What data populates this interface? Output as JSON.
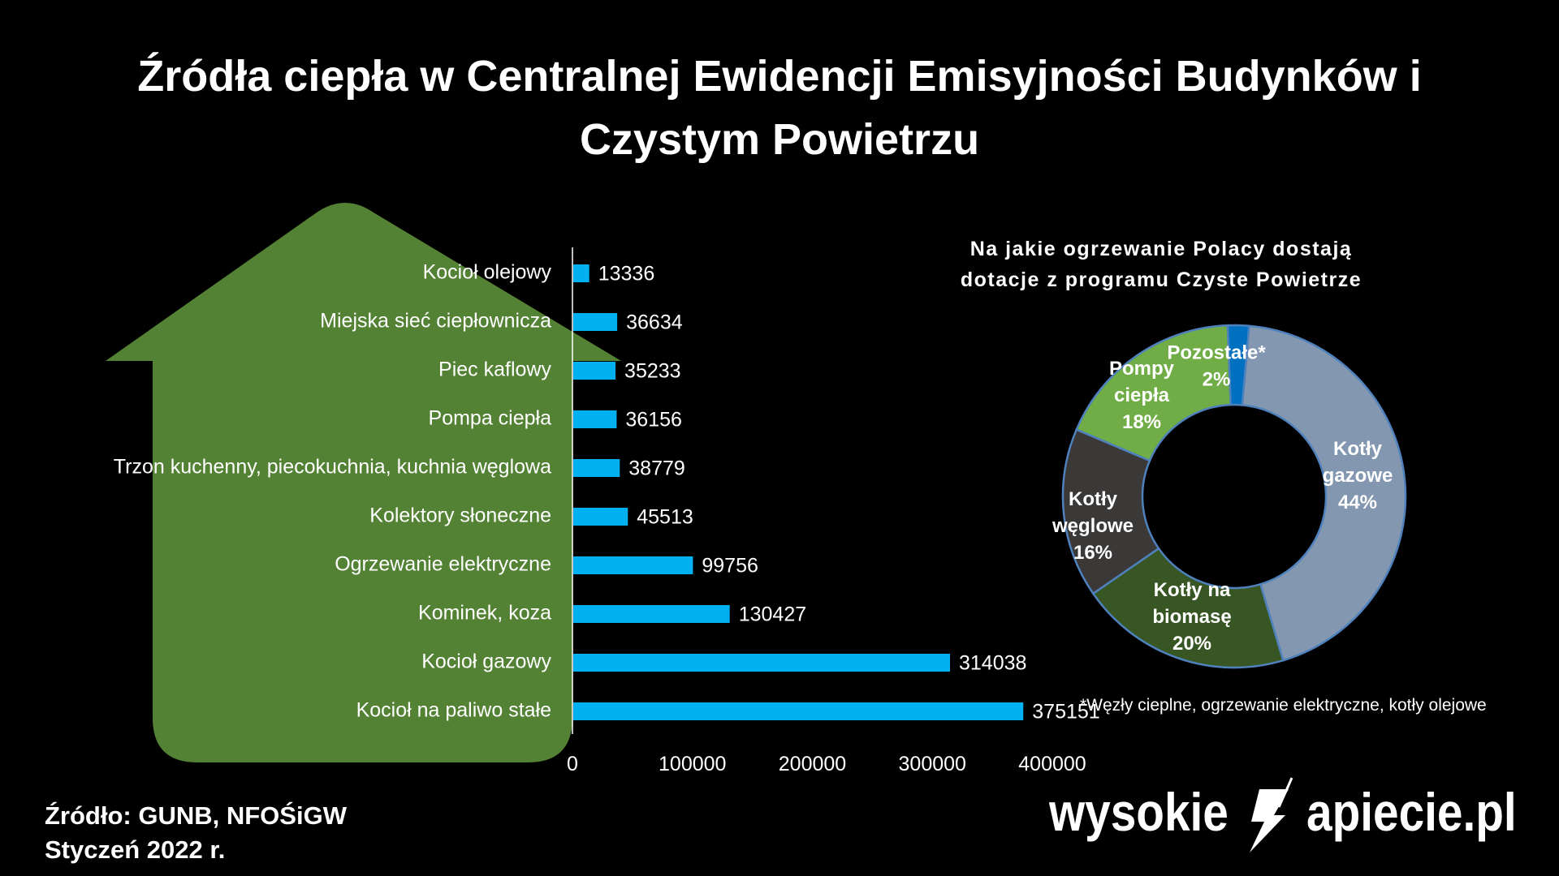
{
  "title": {
    "line1": "Źródła ciepła w Centralnej Ewidencji Emisyjności Budynków i",
    "line2": "Czystym Powietrzu"
  },
  "colors": {
    "background": "#000000",
    "house": "#548235",
    "bar": "#00B0F0",
    "text": "#FFFFFF"
  },
  "chart_data": [
    {
      "type": "bar",
      "orientation": "horizontal",
      "categories": [
        "Kocioł olejowy",
        "Miejska sieć ciepłownicza",
        "Piec kaflowy",
        "Pompa ciepła",
        "Trzon kuchenny, piecokuchnia, kuchnia węglowa",
        "Kolektory słoneczne",
        "Ogrzewanie elektryczne",
        "Kominek, koza",
        "Kocioł gazowy",
        "Kocioł na paliwo stałe"
      ],
      "values": [
        13336,
        36634,
        35233,
        36156,
        38779,
        45513,
        99756,
        130427,
        314038,
        375151
      ],
      "value_labels": [
        "13336",
        "36634",
        "35233",
        "36156",
        "38779",
        "45513",
        "99756",
        "130427",
        "314038",
        "375151"
      ],
      "xlim": [
        0,
        400000
      ],
      "xticks": [
        0,
        100000,
        200000,
        300000,
        400000
      ],
      "xtick_labels": [
        "0",
        "100000",
        "200000",
        "300000",
        "400000"
      ],
      "grid": false,
      "title": "",
      "xlabel": "",
      "ylabel": ""
    },
    {
      "type": "pie",
      "variant": "donut",
      "title_line1": "Na jakie ogrzewanie Polacy dostają",
      "title_line2": "dotacje z programu Czyste Powietrze",
      "slices": [
        {
          "label_lines": [
            "Kotły",
            "gazowe",
            "44%"
          ],
          "value": 44,
          "color": "#8497B0"
        },
        {
          "label_lines": [
            "Kotły na",
            "biomasę",
            "20%"
          ],
          "value": 20,
          "color": "#375623"
        },
        {
          "label_lines": [
            "Kotły",
            "węglowe",
            "16%"
          ],
          "value": 16,
          "color": "#3B3838"
        },
        {
          "label_lines": [
            "Pompy",
            "ciepła",
            "18%"
          ],
          "value": 18,
          "color": "#70AD47"
        },
        {
          "label_lines": [
            "Pozostałe*",
            "2%"
          ],
          "value": 2,
          "color": "#0070C0"
        }
      ],
      "footnote": "*Węzły cieplne, ogrzewanie elektryczne, kotły olejowe"
    }
  ],
  "source": {
    "line1": "Źródło: GUNB, NFOŚiGW",
    "line2": "Styczeń 2022 r."
  },
  "logo": {
    "left": "wysokie",
    "right": "apiecie.pl",
    "icon": "lightning-n-icon"
  }
}
